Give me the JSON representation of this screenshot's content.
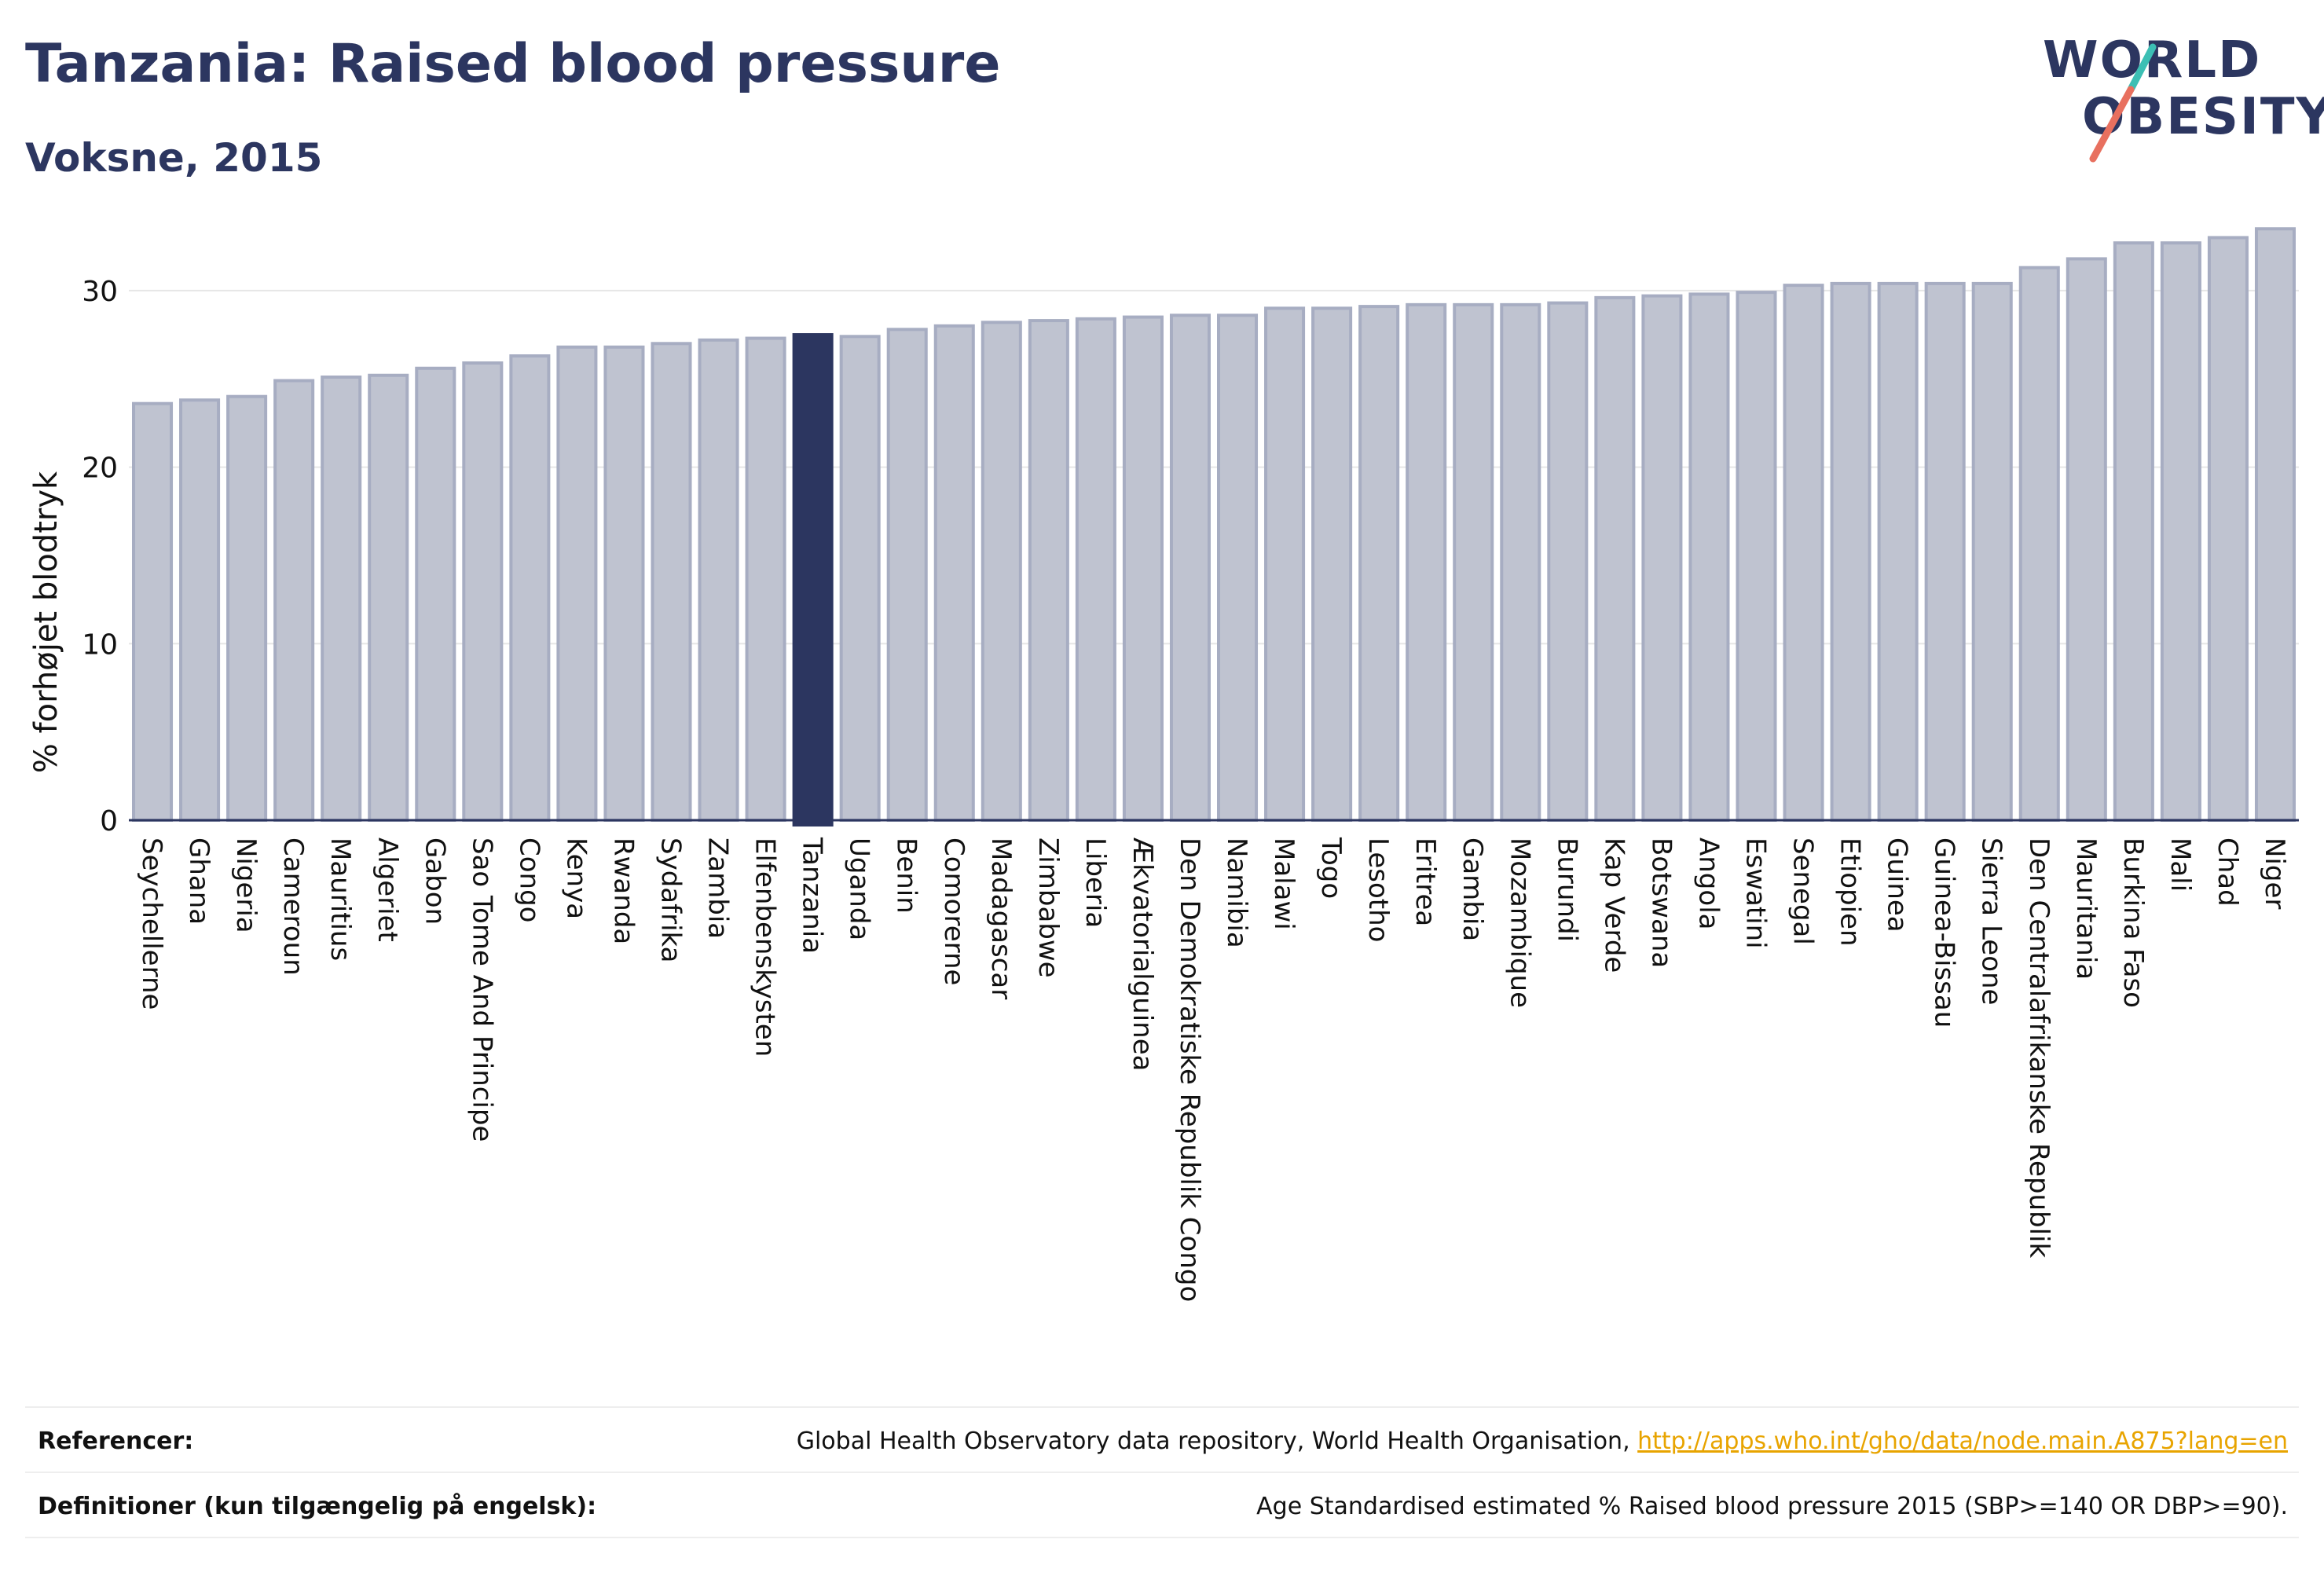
{
  "header": {
    "title": "Tanzania: Raised blood pressure",
    "subtitle": "Voksne, 2015"
  },
  "logo": {
    "line1": "WORLD",
    "line2": "OBESITY"
  },
  "colors": {
    "bar": "#bfc3d0",
    "bar_stroke": "#a7adc2",
    "highlight": "#2c3660",
    "grid": "#e6e6e6",
    "axis": "#2c3660",
    "logo_slash_teal": "#3cbfb4",
    "logo_slash_coral": "#e8705f",
    "link": "#e8a400"
  },
  "chart_data": {
    "type": "bar",
    "ylabel": "% forhøjet blodtryk",
    "ylim": [
      0,
      34
    ],
    "yticks": [
      0,
      10,
      20,
      30
    ],
    "grid": true,
    "highlight": "Tanzania",
    "categories": [
      "Seychellerne",
      "Ghana",
      "Nigeria",
      "Cameroun",
      "Mauritius",
      "Algeriet",
      "Gabon",
      "Sao Tome And Principe",
      "Congo",
      "Kenya",
      "Rwanda",
      "Sydafrika",
      "Zambia",
      "Elfenbenskysten",
      "Tanzania",
      "Uganda",
      "Benin",
      "Comorerne",
      "Madagascar",
      "Zimbabwe",
      "Liberia",
      "Ækvatorialguinea",
      "Den Demokratiske Republik Congo",
      "Namibia",
      "Malawi",
      "Togo",
      "Lesotho",
      "Eritrea",
      "Gambia",
      "Mozambique",
      "Burundi",
      "Kap Verde",
      "Botswana",
      "Angola",
      "Eswatini",
      "Senegal",
      "Etiopien",
      "Guinea",
      "Guinea-Bissau",
      "Sierra Leone",
      "Den Centralafrikanske Republik",
      "Mauritania",
      "Burkina Faso",
      "Mali",
      "Chad",
      "Niger"
    ],
    "values": [
      23.6,
      23.8,
      24.0,
      24.9,
      25.1,
      25.2,
      25.6,
      25.9,
      26.3,
      26.8,
      26.8,
      27.0,
      27.2,
      27.3,
      27.5,
      27.4,
      27.8,
      28.0,
      28.2,
      28.3,
      28.4,
      28.5,
      28.6,
      28.6,
      29.0,
      29.0,
      29.1,
      29.2,
      29.2,
      29.2,
      29.3,
      29.6,
      29.7,
      29.8,
      29.9,
      30.3,
      30.4,
      30.4,
      30.4,
      30.4,
      31.3,
      31.8,
      32.7,
      32.7,
      33.0,
      33.5
    ]
  },
  "footer": {
    "references_label": "Referencer:",
    "references_text": "Global Health Observatory data repository, World Health Organisation, ",
    "references_link": "http://apps.who.int/gho/data/node.main.A875?lang=en",
    "definitions_label": "Definitioner (kun tilgængelig på engelsk):",
    "definitions_text": "Age Standardised estimated % Raised blood pressure 2015 (SBP>=140 OR DBP>=90)."
  }
}
